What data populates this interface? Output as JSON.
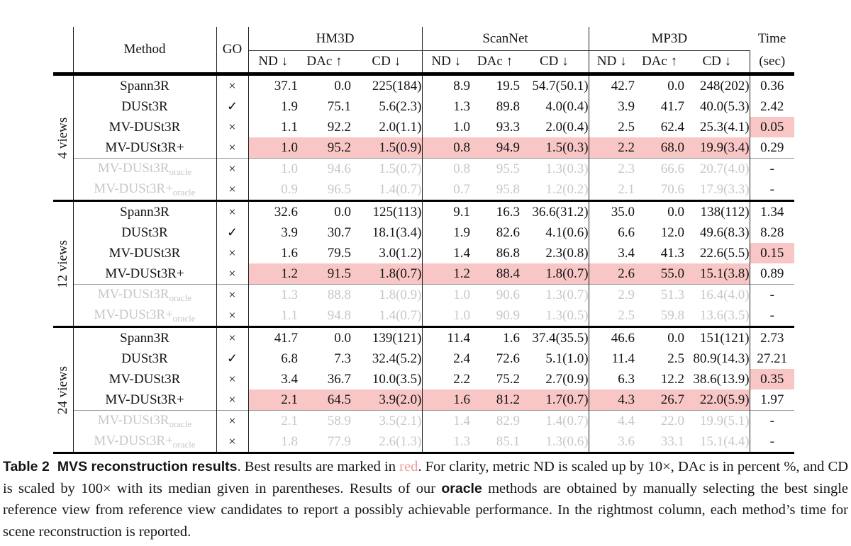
{
  "header": {
    "method": "Method",
    "go": "GO",
    "groups": [
      "HM3D",
      "ScanNet",
      "MP3D"
    ],
    "sub": [
      "ND ↓",
      "DAc ↑",
      "CD ↓"
    ],
    "time_top": "Time",
    "time_bottom": "(sec)"
  },
  "colors": {
    "highlight_pink": "#f9c6c6",
    "oracle_gray": "#c7c7c7",
    "caption_red": "#f09c9c"
  },
  "blocks": [
    {
      "label": "4 views",
      "rows": [
        {
          "method": "Spann3R",
          "sub": "",
          "go": "×",
          "cells": [
            "37.1",
            "0.0",
            "225(184)",
            "8.9",
            "19.5",
            "54.7(50.1)",
            "42.7",
            "0.0",
            "248(202)"
          ],
          "time": "0.36",
          "oracle": false,
          "hl_cells": false,
          "hl_time": false
        },
        {
          "method": "DUSt3R",
          "sub": "",
          "go": "✓",
          "cells": [
            "1.9",
            "75.1",
            "5.6(2.3)",
            "1.3",
            "89.8",
            "4.0(0.4)",
            "3.9",
            "41.7",
            "40.0(5.3)"
          ],
          "time": "2.42",
          "oracle": false,
          "hl_cells": false,
          "hl_time": false
        },
        {
          "method": "MV-DUSt3R",
          "sub": "",
          "go": "×",
          "cells": [
            "1.1",
            "92.2",
            "2.0(1.1)",
            "1.0",
            "93.3",
            "2.0(0.4)",
            "2.5",
            "62.4",
            "25.3(4.1)"
          ],
          "time": "0.05",
          "oracle": false,
          "hl_cells": false,
          "hl_time": true
        },
        {
          "method": "MV-DUSt3R+",
          "sub": "",
          "go": "×",
          "cells": [
            "1.0",
            "95.2",
            "1.5(0.9)",
            "0.8",
            "94.9",
            "1.5(0.3)",
            "2.2",
            "68.0",
            "19.9(3.4)"
          ],
          "time": "0.29",
          "oracle": false,
          "hl_cells": true,
          "hl_time": false
        },
        {
          "method": "MV-DUSt3R",
          "sub": "oracle",
          "go": "×",
          "cells": [
            "1.0",
            "94.6",
            "1.5(0.7)",
            "0.8",
            "95.5",
            "1.3(0.3)",
            "2.3",
            "66.6",
            "20.7(4.0)"
          ],
          "time": "-",
          "oracle": true,
          "hl_cells": false,
          "hl_time": false
        },
        {
          "method": "MV-DUSt3R+",
          "sub": "oracle",
          "go": "×",
          "cells": [
            "0.9",
            "96.5",
            "1.4(0.7)",
            "0.7",
            "95.8",
            "1.2(0.2)",
            "2.1",
            "70.6",
            "17.9(3.3)"
          ],
          "time": "-",
          "oracle": true,
          "hl_cells": false,
          "hl_time": false
        }
      ]
    },
    {
      "label": "12 views",
      "rows": [
        {
          "method": "Spann3R",
          "sub": "",
          "go": "×",
          "cells": [
            "32.6",
            "0.0",
            "125(113)",
            "9.1",
            "16.3",
            "36.6(31.2)",
            "35.0",
            "0.0",
            "138(112)"
          ],
          "time": "1.34",
          "oracle": false,
          "hl_cells": false,
          "hl_time": false
        },
        {
          "method": "DUSt3R",
          "sub": "",
          "go": "✓",
          "cells": [
            "3.9",
            "30.7",
            "18.1(3.4)",
            "1.9",
            "82.6",
            "4.1(0.6)",
            "6.6",
            "12.0",
            "49.6(8.3)"
          ],
          "time": "8.28",
          "oracle": false,
          "hl_cells": false,
          "hl_time": false
        },
        {
          "method": "MV-DUSt3R",
          "sub": "",
          "go": "×",
          "cells": [
            "1.6",
            "79.5",
            "3.0(1.2)",
            "1.4",
            "86.8",
            "2.3(0.8)",
            "3.4",
            "41.3",
            "22.6(5.5)"
          ],
          "time": "0.15",
          "oracle": false,
          "hl_cells": false,
          "hl_time": true
        },
        {
          "method": "MV-DUSt3R+",
          "sub": "",
          "go": "×",
          "cells": [
            "1.2",
            "91.5",
            "1.8(0.7)",
            "1.2",
            "88.4",
            "1.8(0.7)",
            "2.6",
            "55.0",
            "15.1(3.8)"
          ],
          "time": "0.89",
          "oracle": false,
          "hl_cells": true,
          "hl_time": false
        },
        {
          "method": "MV-DUSt3R",
          "sub": "oracle",
          "go": "×",
          "cells": [
            "1.3",
            "88.8",
            "1.8(0.9)",
            "1.0",
            "90.6",
            "1.3(0.7)",
            "2.9",
            "51.3",
            "16.4(4.0)"
          ],
          "time": "-",
          "oracle": true,
          "hl_cells": false,
          "hl_time": false
        },
        {
          "method": "MV-DUSt3R+",
          "sub": "oracle",
          "go": "×",
          "cells": [
            "1.1",
            "94.8",
            "1.4(0.7)",
            "1.0",
            "90.9",
            "1.3(0.5)",
            "2.5",
            "59.8",
            "13.6(3.5)"
          ],
          "time": "-",
          "oracle": true,
          "hl_cells": false,
          "hl_time": false
        }
      ]
    },
    {
      "label": "24 views",
      "rows": [
        {
          "method": "Spann3R",
          "sub": "",
          "go": "×",
          "cells": [
            "41.7",
            "0.0",
            "139(121)",
            "11.4",
            "1.6",
            "37.4(35.5)",
            "46.6",
            "0.0",
            "151(121)"
          ],
          "time": "2.73",
          "oracle": false,
          "hl_cells": false,
          "hl_time": false
        },
        {
          "method": "DUSt3R",
          "sub": "",
          "go": "✓",
          "cells": [
            "6.8",
            "7.3",
            "32.4(5.2)",
            "2.4",
            "72.6",
            "5.1(1.0)",
            "11.4",
            "2.5",
            "80.9(14.3)"
          ],
          "time": "27.21",
          "oracle": false,
          "hl_cells": false,
          "hl_time": false
        },
        {
          "method": "MV-DUSt3R",
          "sub": "",
          "go": "×",
          "cells": [
            "3.4",
            "36.7",
            "10.0(3.5)",
            "2.2",
            "75.2",
            "2.7(0.9)",
            "6.3",
            "12.2",
            "38.6(13.9)"
          ],
          "time": "0.35",
          "oracle": false,
          "hl_cells": false,
          "hl_time": true
        },
        {
          "method": "MV-DUSt3R+",
          "sub": "",
          "go": "×",
          "cells": [
            "2.1",
            "64.5",
            "3.9(2.0)",
            "1.6",
            "81.2",
            "1.7(0.7)",
            "4.3",
            "26.7",
            "22.0(5.9)"
          ],
          "time": "1.97",
          "oracle": false,
          "hl_cells": true,
          "hl_time": false
        },
        {
          "method": "MV-DUSt3R",
          "sub": "oracle",
          "go": "×",
          "cells": [
            "2.1",
            "58.9",
            "3.5(2.1)",
            "1.4",
            "82.9",
            "1.4(0.7)",
            "4.4",
            "22.0",
            "19.9(5.1)"
          ],
          "time": "-",
          "oracle": true,
          "hl_cells": false,
          "hl_time": false
        },
        {
          "method": "MV-DUSt3R+",
          "sub": "oracle",
          "go": "×",
          "cells": [
            "1.8",
            "77.9",
            "2.6(1.3)",
            "1.3",
            "85.1",
            "1.3(0.6)",
            "3.6",
            "33.1",
            "15.1(4.4)"
          ],
          "time": "-",
          "oracle": true,
          "hl_cells": false,
          "hl_time": false
        }
      ]
    }
  ],
  "caption": {
    "label": "Table 2",
    "title": "MVS reconstruction results",
    "s1": ". Best results are marked in ",
    "red": "red",
    "s2": ". For clarity, metric ND is scaled up by 10×, DAc is in percent %, and CD is scaled by 100× with its median given in parentheses. Results of our ",
    "oracle": "oracle",
    "s3": " methods are obtained by manually selecting the best single reference view from reference view candidates to report a possibly achievable performance. In the rightmost column, each method’s time for scene reconstruction is reported."
  }
}
